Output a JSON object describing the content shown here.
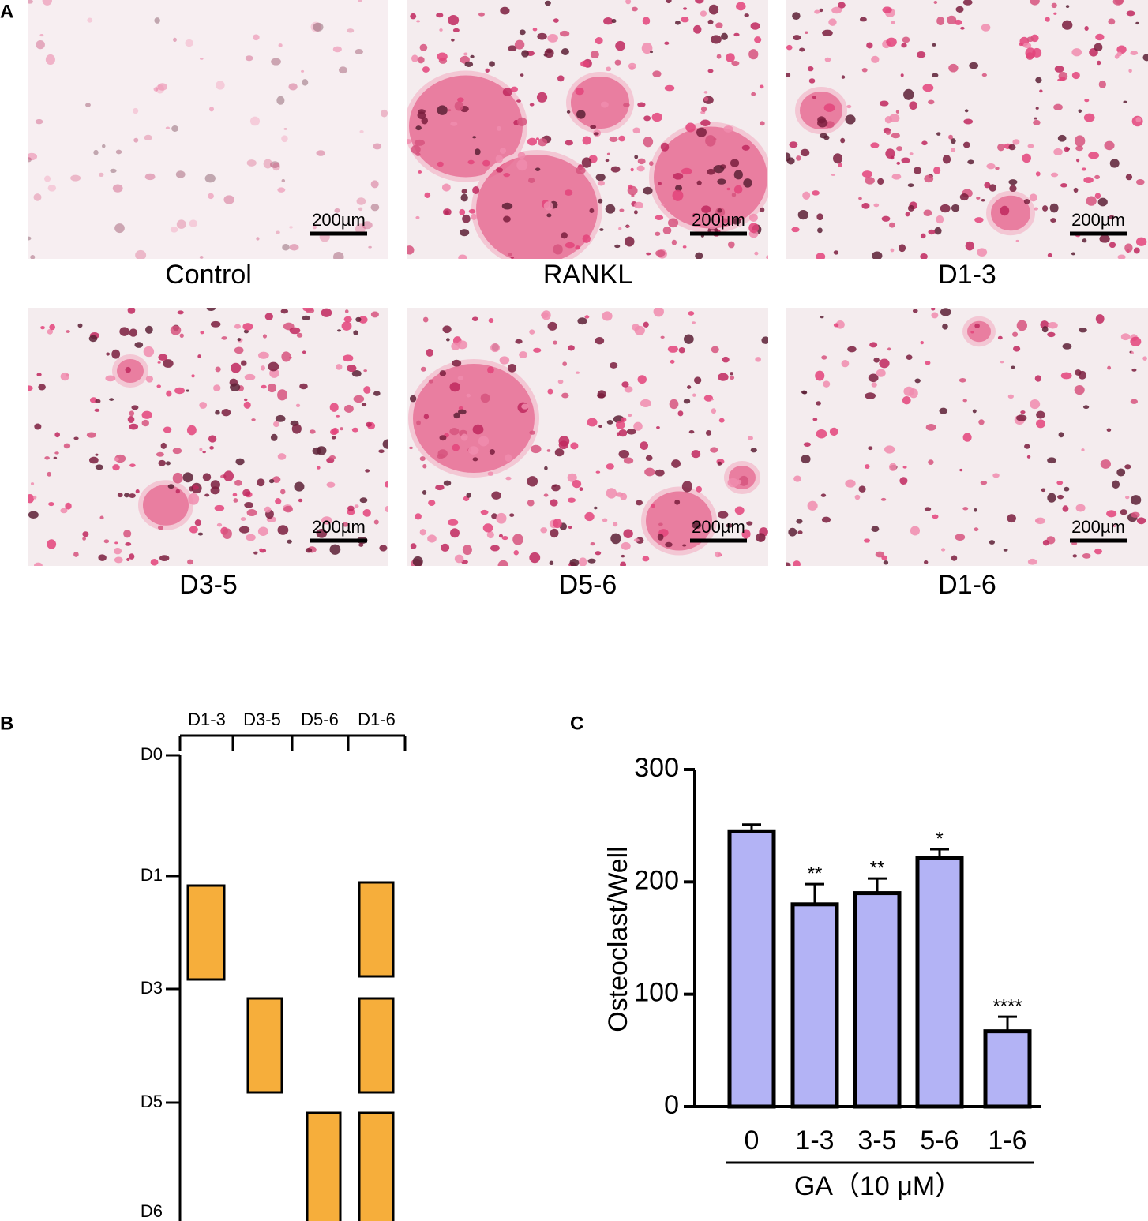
{
  "figure": {
    "panel_a": {
      "label": "A",
      "images": [
        {
          "caption": "Control",
          "scale_bar": "200µm"
        },
        {
          "caption": "RANKL",
          "scale_bar": "200µm"
        },
        {
          "caption": "D1-3",
          "scale_bar": "200µm"
        },
        {
          "caption": "D3-5",
          "scale_bar": "200µm"
        },
        {
          "caption": "D5-6",
          "scale_bar": "200µm"
        },
        {
          "caption": "D1-6",
          "scale_bar": "200µm"
        }
      ]
    },
    "panel_b": {
      "label": "B",
      "columns": [
        "D1-3",
        "D3-5",
        "D5-6",
        "D1-6"
      ],
      "days": [
        "D0",
        "D1",
        "D3",
        "D5",
        "D6"
      ]
    },
    "panel_c": {
      "label": "C"
    }
  },
  "chart_data": {
    "type": "bar",
    "categories": [
      "0",
      "1-3",
      "3-5",
      "5-6",
      "1-6"
    ],
    "values": [
      245,
      180,
      190,
      221,
      67
    ],
    "errors": [
      6,
      18,
      13,
      8,
      13
    ],
    "significance": [
      null,
      "**",
      "**",
      "*",
      "****"
    ],
    "color": "#b3b3f5",
    "y_label": "Osteoclast/Well",
    "x_label": "GA（10 μM）",
    "ylim": [
      0,
      300
    ],
    "yticks": [
      0,
      100,
      200,
      300
    ]
  }
}
